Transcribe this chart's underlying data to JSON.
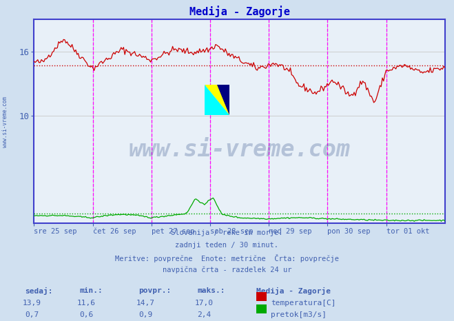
{
  "title": "Medija - Zagorje",
  "title_color": "#0000cc",
  "bg_color": "#d0e0f0",
  "plot_bg_color": "#e8f0f8",
  "grid_color": "#c8c8c8",
  "axis_color": "#4040cc",
  "text_color": "#4060b0",
  "temp_color": "#cc0000",
  "flow_color": "#00aa00",
  "avg_temp": 14.7,
  "avg_flow": 0.9,
  "x_tick_labels": [
    "sre 25 sep",
    "čet 26 sep",
    "pet 27 sep",
    "sob 28 sep",
    "ned 29 sep",
    "pon 30 sep",
    "tor 01 okt"
  ],
  "y_ticks": [
    10,
    16
  ],
  "ylim_min": 0,
  "ylim_max": 19,
  "vline_color": "#ff00ff",
  "watermark_text": "www.si-vreme.com",
  "watermark_color": "#1a3a7a",
  "watermark_alpha": 0.25,
  "footer_lines": [
    "Slovenija / reke in morje.",
    "zadnji teden / 30 minut.",
    "Meritve: povprečne  Enote: metrične  Črta: povprečje",
    "navpična črta - razdelek 24 ur"
  ],
  "legend_title": "Medija - Zagorje",
  "legend_entries": [
    {
      "label": "temperatura[C]",
      "color": "#cc0000"
    },
    {
      "label": "pretok[m3/s]",
      "color": "#00aa00"
    }
  ],
  "table_headers": [
    "sedaj:",
    "min.:",
    "povpr.:",
    "maks.:"
  ],
  "table_temp": [
    "13,9",
    "11,6",
    "14,7",
    "17,0"
  ],
  "table_flow": [
    "0,7",
    "0,6",
    "0,9",
    "2,4"
  ],
  "n_days": 7,
  "sidebar_text": "www.si-vreme.com"
}
